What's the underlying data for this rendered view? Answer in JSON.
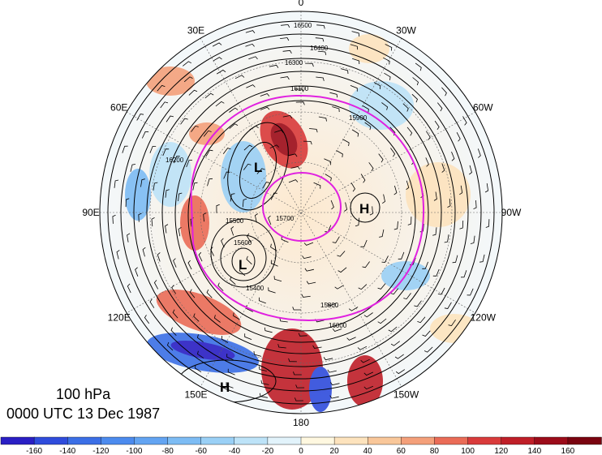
{
  "title": {
    "level": "100 hPa",
    "time": "0000 UTC 13 Dec 1987"
  },
  "longitude_labels": [
    {
      "text": "0",
      "angle": 0
    },
    {
      "text": "30W",
      "angle": 30
    },
    {
      "text": "60W",
      "angle": 60
    },
    {
      "text": "90W",
      "angle": 90
    },
    {
      "text": "120W",
      "angle": 120
    },
    {
      "text": "150W",
      "angle": 150
    },
    {
      "text": "180",
      "angle": 180
    },
    {
      "text": "150E",
      "angle": 210
    },
    {
      "text": "120E",
      "angle": 240
    },
    {
      "text": "90E",
      "angle": 270
    },
    {
      "text": "60E",
      "angle": 300
    },
    {
      "text": "30E",
      "angle": 330
    }
  ],
  "pressure_centers": [
    {
      "symbol": "L",
      "lon_label": "60E"
    },
    {
      "symbol": "L",
      "lon_label": "120E"
    },
    {
      "symbol": "H",
      "lon_label": "90W"
    },
    {
      "symbol": "H",
      "lon_label": "150E"
    }
  ],
  "contour_labels": [
    "16500",
    "16400",
    "16300",
    "16200",
    "16100",
    "16000",
    "15900",
    "15800",
    "15700",
    "15600",
    "15500",
    "15400"
  ],
  "colorbar": {
    "ticks": [
      "-160",
      "-140",
      "-120",
      "-100",
      "-80",
      "-60",
      "-40",
      "-20",
      "0",
      "20",
      "40",
      "60",
      "80",
      "100",
      "120",
      "140",
      "160"
    ],
    "colors": [
      "#2a1fc4",
      "#2f4cdc",
      "#3b6fe6",
      "#4c8bee",
      "#63a4f2",
      "#7dbcf4",
      "#9ad0f6",
      "#bde3f8",
      "#e2f3fb",
      "#fff8e0",
      "#fde3bd",
      "#f9c79a",
      "#f4a07a",
      "#ea6c57",
      "#d93b3b",
      "#bf1f28",
      "#9c0c1a",
      "#7a0410"
    ]
  },
  "colors": {
    "polar_vortex_contour": "#e020e0",
    "height_contours": "#000000"
  }
}
